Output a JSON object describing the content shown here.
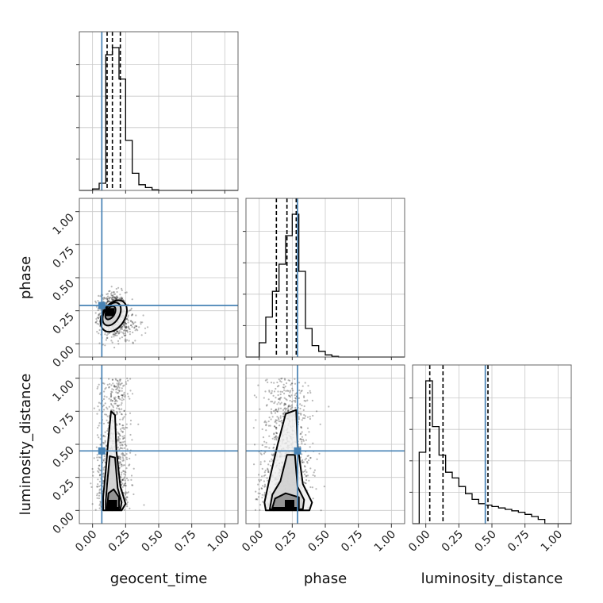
{
  "chart_data": {
    "type": "corner",
    "parameters": [
      "geocent_time",
      "phase",
      "luminosity_distance"
    ],
    "axis_range": [
      -0.1,
      1.1
    ],
    "tick_values": [
      0.0,
      0.25,
      0.5,
      0.75,
      1.0
    ],
    "tick_labels": [
      "0.00",
      "0.25",
      "0.50",
      "0.75",
      "1.00"
    ],
    "grid": true,
    "injection_color": "#4682b4",
    "line_color": "#000000",
    "truths": {
      "geocent_time": 0.07,
      "phase": 0.29,
      "luminosity_distance": 0.45
    },
    "histograms": {
      "geocent_time": {
        "bin_edges": [
          -0.1,
          -0.05,
          0.0,
          0.05,
          0.1,
          0.15,
          0.2,
          0.25,
          0.3,
          0.35,
          0.4,
          0.45,
          0.5,
          0.55,
          0.6,
          0.65,
          0.7,
          0.75,
          0.8,
          0.85,
          0.9,
          0.95,
          1.0,
          1.05,
          1.1
        ],
        "counts": [
          0,
          0,
          0.01,
          0.05,
          0.95,
          1.0,
          0.78,
          0.35,
          0.12,
          0.04,
          0.02,
          0.005,
          0,
          0,
          0,
          0,
          0,
          0,
          0,
          0,
          0,
          0,
          0,
          0
        ],
        "quantiles": [
          0.11,
          0.15,
          0.21
        ]
      },
      "phase": {
        "bin_edges": [
          -0.1,
          -0.05,
          0.0,
          0.05,
          0.1,
          0.15,
          0.2,
          0.25,
          0.3,
          0.35,
          0.4,
          0.45,
          0.5,
          0.55,
          0.6,
          0.65,
          0.7,
          0.75,
          0.8,
          0.85,
          0.9,
          0.95,
          1.0,
          1.05,
          1.1
        ],
        "counts": [
          0,
          0,
          0.1,
          0.28,
          0.46,
          0.65,
          0.85,
          1.0,
          0.6,
          0.2,
          0.08,
          0.04,
          0.015,
          0.005,
          0,
          0,
          0,
          0,
          0,
          0,
          0,
          0,
          0,
          0
        ],
        "quantiles": [
          0.13,
          0.21,
          0.28
        ]
      },
      "luminosity_distance": {
        "bin_edges": [
          -0.1,
          -0.05,
          0.0,
          0.05,
          0.1,
          0.15,
          0.2,
          0.25,
          0.3,
          0.35,
          0.4,
          0.45,
          0.5,
          0.55,
          0.6,
          0.65,
          0.7,
          0.75,
          0.8,
          0.85,
          0.9,
          0.95,
          1.0,
          1.05,
          1.1
        ],
        "counts": [
          0,
          0.5,
          1.0,
          0.68,
          0.48,
          0.36,
          0.32,
          0.26,
          0.21,
          0.17,
          0.14,
          0.13,
          0.12,
          0.11,
          0.1,
          0.09,
          0.08,
          0.065,
          0.05,
          0.03,
          0,
          0,
          0,
          0
        ],
        "quantiles": [
          0.03,
          0.13,
          0.47
        ]
      }
    },
    "density_modes": {
      "phase_vs_geocent_time": [
        0.13,
        0.24
      ],
      "luminosity_distance_vs_geocent_time": [
        0.15,
        0.05
      ],
      "luminosity_distance_vs_phase": [
        0.23,
        0.05
      ]
    }
  }
}
